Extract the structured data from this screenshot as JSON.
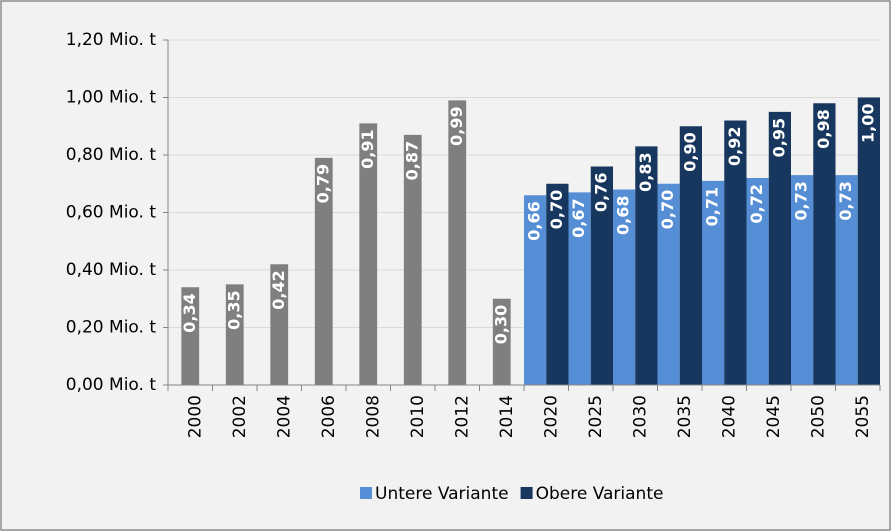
{
  "chart_data": {
    "type": "bar",
    "categories": [
      "2000",
      "2002",
      "2004",
      "2006",
      "2008",
      "2010",
      "2012",
      "2014",
      "2020",
      "2025",
      "2030",
      "2035",
      "2040",
      "2045",
      "2050",
      "2055"
    ],
    "series": [
      {
        "color": "#7f7f7f",
        "values": [
          0.34,
          0.35,
          0.42,
          0.79,
          0.91,
          0.87,
          0.99,
          0.3,
          null,
          null,
          null,
          null,
          null,
          null,
          null,
          null
        ],
        "value_labels": [
          "0,34",
          "0,35",
          "0,42",
          "0,79",
          "0,91",
          "0,87",
          "0,99",
          "0,30",
          null,
          null,
          null,
          null,
          null,
          null,
          null,
          null
        ]
      },
      {
        "name": "Untere Variante",
        "color": "#558ed5",
        "values": [
          null,
          null,
          null,
          null,
          null,
          null,
          null,
          null,
          0.66,
          0.67,
          0.68,
          0.7,
          0.71,
          0.72,
          0.73,
          0.73
        ],
        "value_labels": [
          null,
          null,
          null,
          null,
          null,
          null,
          null,
          null,
          "0,66",
          "0,67",
          "0,68",
          "0,70",
          "0,71",
          "0,72",
          "0,73",
          "0,73"
        ]
      },
      {
        "name": "Obere Variante",
        "color": "#17375e",
        "values": [
          null,
          null,
          null,
          null,
          null,
          null,
          null,
          null,
          0.7,
          0.76,
          0.83,
          0.9,
          0.92,
          0.95,
          0.98,
          1.0
        ],
        "value_labels": [
          null,
          null,
          null,
          null,
          null,
          null,
          null,
          null,
          "0,70",
          "0,76",
          "0,83",
          "0,90",
          "0,92",
          "0,95",
          "0,98",
          "1,00"
        ]
      }
    ],
    "ylim": [
      0,
      1.2
    ],
    "yticks": [
      {
        "value": 0,
        "label": "0,00 Mio. t"
      },
      {
        "value": 0.2,
        "label": "0,20 Mio. t"
      },
      {
        "value": 0.4,
        "label": "0,40 Mio. t"
      },
      {
        "value": 0.6,
        "label": "0,60 Mio. t"
      },
      {
        "value": 0.8,
        "label": "0,80 Mio. t"
      },
      {
        "value": 1.0,
        "label": "1,00 Mio. t"
      },
      {
        "value": 1.2,
        "label": "1,20 Mio. t"
      }
    ],
    "grid": true,
    "legend": "bottom"
  }
}
